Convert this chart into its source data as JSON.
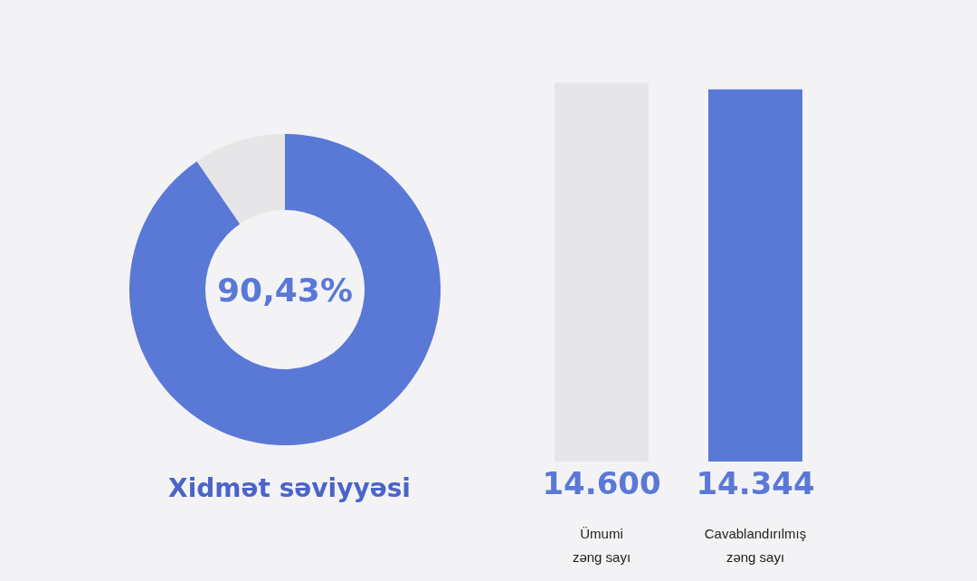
{
  "chart_data": [
    {
      "type": "donut",
      "title": "Xidmət səviyyəsi",
      "categories": [
        null,
        null
      ],
      "values": [
        90.43,
        9.57
      ],
      "colors": [
        "#5a78d6",
        "#e6e6e8"
      ],
      "value_labels": [
        "90,43%",
        null
      ]
    },
    {
      "type": "bar",
      "categories": [
        "Ümumi\nzəng sayı",
        "Cavablandırılmış\nzəng sayı"
      ],
      "values": [
        14600,
        14344
      ],
      "colors": [
        "#e6e6e8",
        "#5a78d6"
      ],
      "value_labels": [
        "14.600",
        "14.344"
      ]
    }
  ]
}
